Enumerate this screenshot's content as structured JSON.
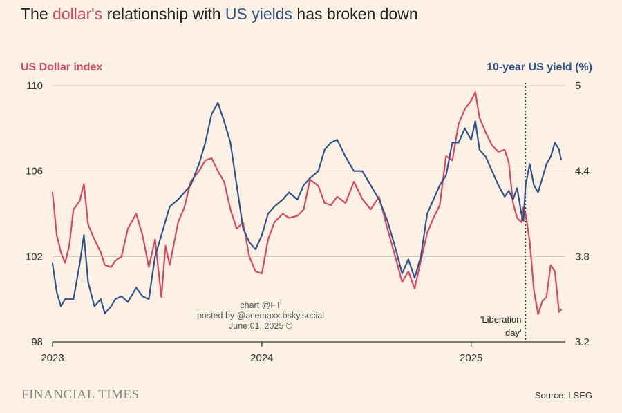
{
  "chart_data": {
    "type": "line",
    "title": {
      "part1": "The ",
      "part2": "dollar's",
      "part3": " relationship with ",
      "part4": "US yields",
      "part5": " has broken down"
    },
    "y_left": {
      "label": "US Dollar index",
      "range": [
        98,
        110
      ],
      "ticks": [
        "110",
        "106",
        "102",
        "98"
      ]
    },
    "y_right": {
      "label": "10-year US yield (%)",
      "range": [
        3.2,
        5.0
      ],
      "ticks": [
        "5",
        "4.4",
        "3.8",
        "3.2"
      ]
    },
    "x_range": [
      2023.0,
      2025.45
    ],
    "x_ticks": [
      {
        "value": 2023.0,
        "label": "2023"
      },
      {
        "value": 2024.0,
        "label": "2024"
      },
      {
        "value": 2025.0,
        "label": "2025"
      }
    ],
    "series": [
      {
        "name": "US Dollar index",
        "axis": "left",
        "color": "#d9485c",
        "x": [
          2023.0,
          2023.02,
          2023.04,
          2023.06,
          2023.08,
          2023.1,
          2023.13,
          2023.15,
          2023.17,
          2023.2,
          2023.23,
          2023.25,
          2023.28,
          2023.3,
          2023.33,
          2023.36,
          2023.4,
          2023.43,
          2023.46,
          2023.49,
          2023.52,
          2023.54,
          2023.56,
          2023.6,
          2023.63,
          2023.66,
          2023.7,
          2023.73,
          2023.76,
          2023.79,
          2023.82,
          2023.85,
          2023.88,
          2023.91,
          2023.94,
          2023.97,
          2024.0,
          2024.03,
          2024.06,
          2024.1,
          2024.13,
          2024.17,
          2024.2,
          2024.23,
          2024.27,
          2024.3,
          2024.33,
          2024.36,
          2024.4,
          2024.44,
          2024.48,
          2024.52,
          2024.56,
          2024.6,
          2024.64,
          2024.67,
          2024.7,
          2024.73,
          2024.76,
          2024.79,
          2024.82,
          2024.85,
          2024.88,
          2024.91,
          2024.94,
          2024.97,
          2025.0,
          2025.02,
          2025.04,
          2025.07,
          2025.1,
          2025.13,
          2025.16,
          2025.18,
          2025.2,
          2025.22,
          2025.24,
          2025.25,
          2025.26,
          2025.28,
          2025.3,
          2025.32,
          2025.34,
          2025.36,
          2025.38,
          2025.4,
          2025.42,
          2025.43
        ],
        "y": [
          105.0,
          103.0,
          102.2,
          101.7,
          102.5,
          104.2,
          104.6,
          105.4,
          103.5,
          102.8,
          102.2,
          101.6,
          101.5,
          101.8,
          102.0,
          103.3,
          104.0,
          103.0,
          101.5,
          102.8,
          100.1,
          102.5,
          101.6,
          103.6,
          104.3,
          105.5,
          106.0,
          106.5,
          106.6,
          106.0,
          105.5,
          104.2,
          103.3,
          103.6,
          102.0,
          101.3,
          101.2,
          102.8,
          103.6,
          104.0,
          103.8,
          103.9,
          104.2,
          105.6,
          105.3,
          104.5,
          104.4,
          104.8,
          104.5,
          105.5,
          104.7,
          104.2,
          104.8,
          103.3,
          101.9,
          100.8,
          101.3,
          100.5,
          101.8,
          103.1,
          103.8,
          104.4,
          106.7,
          106.5,
          108.2,
          108.9,
          109.3,
          109.7,
          108.5,
          107.8,
          107.2,
          106.9,
          107.0,
          106.4,
          104.5,
          103.8,
          103.6,
          104.3,
          104.0,
          102.7,
          100.4,
          99.3,
          99.9,
          100.1,
          101.6,
          101.3,
          99.4,
          99.5
        ]
      },
      {
        "name": "10-year US yield (%)",
        "axis": "right",
        "color": "#2e538a",
        "x": [
          2023.0,
          2023.02,
          2023.04,
          2023.06,
          2023.08,
          2023.1,
          2023.13,
          2023.15,
          2023.17,
          2023.2,
          2023.23,
          2023.25,
          2023.28,
          2023.3,
          2023.33,
          2023.36,
          2023.4,
          2023.43,
          2023.46,
          2023.49,
          2023.52,
          2023.54,
          2023.56,
          2023.6,
          2023.63,
          2023.66,
          2023.7,
          2023.73,
          2023.76,
          2023.79,
          2023.82,
          2023.85,
          2023.88,
          2023.91,
          2023.94,
          2023.97,
          2024.0,
          2024.03,
          2024.06,
          2024.1,
          2024.13,
          2024.17,
          2024.2,
          2024.23,
          2024.27,
          2024.3,
          2024.33,
          2024.36,
          2024.4,
          2024.44,
          2024.48,
          2024.52,
          2024.56,
          2024.6,
          2024.64,
          2024.67,
          2024.7,
          2024.73,
          2024.76,
          2024.79,
          2024.82,
          2024.85,
          2024.88,
          2024.91,
          2024.94,
          2024.97,
          2025.0,
          2025.02,
          2025.04,
          2025.07,
          2025.1,
          2025.13,
          2025.16,
          2025.18,
          2025.2,
          2025.22,
          2025.24,
          2025.25,
          2025.26,
          2025.28,
          2025.3,
          2025.32,
          2025.34,
          2025.36,
          2025.38,
          2025.4,
          2025.42,
          2025.43
        ],
        "y": [
          3.75,
          3.55,
          3.45,
          3.5,
          3.5,
          3.5,
          3.75,
          3.95,
          3.62,
          3.45,
          3.5,
          3.4,
          3.45,
          3.5,
          3.52,
          3.48,
          3.58,
          3.52,
          3.5,
          3.8,
          3.95,
          4.05,
          4.15,
          4.2,
          4.25,
          4.3,
          4.45,
          4.6,
          4.8,
          4.88,
          4.75,
          4.6,
          4.3,
          4.0,
          3.9,
          3.85,
          3.95,
          4.1,
          4.15,
          4.2,
          4.25,
          4.2,
          4.3,
          4.35,
          4.4,
          4.55,
          4.6,
          4.62,
          4.5,
          4.4,
          4.4,
          4.3,
          4.2,
          4.05,
          3.85,
          3.68,
          3.78,
          3.65,
          3.8,
          4.1,
          4.2,
          4.3,
          4.37,
          4.6,
          4.6,
          4.7,
          4.62,
          4.75,
          4.55,
          4.5,
          4.4,
          4.3,
          4.22,
          4.26,
          4.2,
          4.28,
          4.1,
          4.05,
          4.3,
          4.45,
          4.3,
          4.25,
          4.35,
          4.45,
          4.5,
          4.6,
          4.55,
          4.48
        ]
      }
    ],
    "annotation": {
      "x": 2025.26,
      "label_line1": "'Liberation",
      "label_line2": "day'"
    },
    "watermark": {
      "line1": "chart @FT",
      "line2": "posted by @acemaxx.bsky.social",
      "line3": "June 01, 2025 ©"
    }
  },
  "footer": {
    "brand": "FINANCIAL TIMES",
    "source": "Source: LSEG"
  }
}
